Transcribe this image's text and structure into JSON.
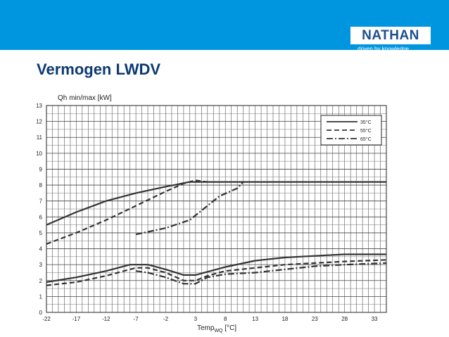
{
  "header": {
    "brand": "NATHAN",
    "tagline": "driven by knowledge",
    "band_color": "#0096df",
    "brand_color": "#1a4f91"
  },
  "slide": {
    "title": "Vermogen LWDV"
  },
  "chart_data": {
    "type": "line",
    "ylabel": "Qh min/max [kW]",
    "xlabel_main": "Temp",
    "xlabel_sub": "WQ",
    "xlabel_unit": " [°C]",
    "ylim": [
      0,
      13
    ],
    "xlim": [
      -22,
      35
    ],
    "xticks": [
      -22,
      -17,
      -12,
      -7,
      -2,
      3,
      8,
      13,
      18,
      23,
      28,
      33
    ],
    "yticks": [
      0,
      1,
      2,
      3,
      4,
      5,
      6,
      7,
      8,
      9,
      10,
      11,
      12,
      13
    ],
    "grid": true,
    "legend_position": "top-right",
    "series": [
      {
        "name": "35°C",
        "style": "solid",
        "group": "max",
        "x": [
          -22,
          -17,
          -12,
          -7,
          -2,
          2,
          35
        ],
        "y": [
          5.5,
          6.3,
          7.0,
          7.5,
          7.9,
          8.2,
          8.2
        ]
      },
      {
        "name": "35°C",
        "style": "solid",
        "group": "min",
        "x": [
          -22,
          -17,
          -12,
          -8,
          -5,
          -2,
          1,
          3,
          5,
          8,
          13,
          18,
          23,
          28,
          35
        ],
        "y": [
          1.9,
          2.2,
          2.6,
          3.0,
          3.0,
          2.7,
          2.35,
          2.35,
          2.55,
          2.85,
          3.25,
          3.45,
          3.55,
          3.65,
          3.65
        ]
      },
      {
        "name": "55°C",
        "style": "dashed",
        "group": "max",
        "x": [
          -22,
          -17,
          -12,
          -7,
          -2,
          1,
          3,
          5
        ],
        "y": [
          4.3,
          5.0,
          5.8,
          6.7,
          7.6,
          8.1,
          8.3,
          8.2
        ]
      },
      {
        "name": "55°C",
        "style": "dashed",
        "group": "min",
        "x": [
          -22,
          -17,
          -12,
          -7,
          -5,
          -2,
          1,
          3,
          5,
          8,
          13,
          18,
          23,
          28,
          35
        ],
        "y": [
          1.7,
          1.9,
          2.3,
          2.8,
          2.8,
          2.5,
          2.0,
          2.0,
          2.3,
          2.6,
          2.8,
          3.0,
          3.1,
          3.2,
          3.3
        ]
      },
      {
        "name": "65°C",
        "style": "dashdot",
        "group": "max",
        "x": [
          -7,
          -2,
          2,
          4,
          7,
          10,
          11
        ],
        "y": [
          4.9,
          5.3,
          5.8,
          6.4,
          7.3,
          7.8,
          8.2
        ]
      },
      {
        "name": "65°C",
        "style": "dashdot",
        "group": "min",
        "x": [
          -7,
          -5,
          -2,
          1,
          3,
          5,
          8,
          13,
          18,
          23,
          28,
          35
        ],
        "y": [
          2.6,
          2.5,
          2.2,
          1.8,
          1.8,
          2.2,
          2.4,
          2.5,
          2.7,
          2.9,
          3.0,
          3.1
        ]
      }
    ],
    "legend": [
      {
        "label": "35°C",
        "style": "solid"
      },
      {
        "label": "55°C",
        "style": "dashed"
      },
      {
        "label": "65°C",
        "style": "dashdot"
      }
    ]
  }
}
